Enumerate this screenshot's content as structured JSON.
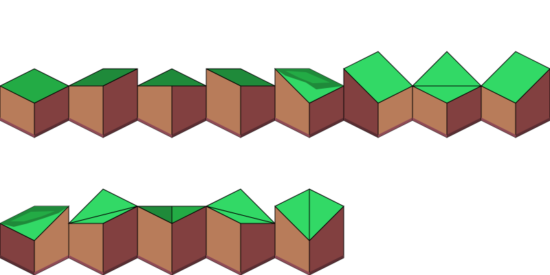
{
  "sheet": {
    "tile_count": 13,
    "rows": 2,
    "tiles_per_row": [
      8,
      5
    ]
  },
  "tiles": [
    {
      "id": 1,
      "top": "flat",
      "top_color": "dark-grass"
    },
    {
      "id": 2,
      "top": "ramp-up-right",
      "top_color": "dark-grass"
    },
    {
      "id": 3,
      "top": "ramp-up-center",
      "top_color": "dark-grass"
    },
    {
      "id": 4,
      "top": "ramp-up-left",
      "top_color": "dark-grass"
    },
    {
      "id": 5,
      "top": "corner-slope",
      "top_color": "mixed-grass"
    },
    {
      "id": 6,
      "top": "steep-slope-left",
      "top_color": "light-grass"
    },
    {
      "id": 7,
      "top": "peak",
      "top_color": "light-grass"
    },
    {
      "id": 8,
      "top": "steep-slope-right",
      "top_color": "light-grass"
    },
    {
      "id": 9,
      "top": "corner-slope-left",
      "top_color": "mixed-grass"
    },
    {
      "id": 10,
      "top": "ramp-peak-left",
      "top_color": "light-grass"
    },
    {
      "id": 11,
      "top": "valley",
      "top_color": "light-grass"
    },
    {
      "id": 12,
      "top": "ramp-peak-right",
      "top_color": "light-grass"
    },
    {
      "id": 13,
      "top": "pyramid",
      "top_color": "light-grass"
    }
  ],
  "colors": {
    "grass_light": "#32d966",
    "grass_mid": "#23ab45",
    "grass_dark": "#1f8a3a",
    "dirt_left": "#b87c5a",
    "dirt_right": "#824040",
    "base_left": "#8f4a55",
    "base_right": "#5b2d32",
    "outline": "#000000"
  }
}
